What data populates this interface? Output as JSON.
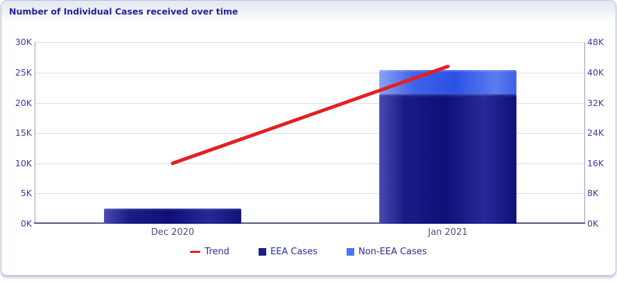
{
  "panel": {
    "title": "Number of Individual Cases received over time"
  },
  "axes": {
    "left": {
      "ticks": [
        "30K",
        "25K",
        "20K",
        "15K",
        "10K",
        "5K",
        "0K"
      ]
    },
    "right": {
      "ticks": [
        "48K",
        "40K",
        "32K",
        "24K",
        "16K",
        "8K",
        "0K"
      ]
    }
  },
  "legend": {
    "items": [
      {
        "label": "Trend",
        "color": "#E32020"
      },
      {
        "label": "EEA Cases",
        "color": "#1F1F8E"
      },
      {
        "label": "Non-EEA Cases",
        "color": "#4F74F0"
      }
    ]
  },
  "colors": {
    "title_text": "#24249B",
    "axis_text": "#3A3AA0",
    "x_label_text": "#4E4E86",
    "trend_line": "#E32020",
    "eea_bar": "#14147E",
    "non_eea_bar": "#3B5FE8",
    "gridline": "#D9DCE4",
    "panel_border": "#B9C3D7"
  },
  "chart_data": {
    "type": "bar",
    "subtype": "stacked-cylinder-bars-with-trend-line",
    "title": "Number of Individual Cases received over time",
    "categories": [
      "Dec 2020",
      "Jan 2021"
    ],
    "series": [
      {
        "name": "EEA Cases",
        "kind": "bar-stacked",
        "axis": "right",
        "values": [
          4000,
          34300
        ],
        "color": "#1F1F8E"
      },
      {
        "name": "Non-EEA Cases",
        "kind": "bar-stacked",
        "axis": "right",
        "values": [
          0,
          6400
        ],
        "color": "#4F74F0"
      },
      {
        "name": "Trend",
        "kind": "line",
        "axis": "left",
        "values": [
          10000,
          26000
        ],
        "color": "#E32020"
      }
    ],
    "axis_left": {
      "min": 0,
      "max": 30000,
      "tick_step": 5000,
      "tick_labels": [
        "0K",
        "5K",
        "10K",
        "15K",
        "20K",
        "25K",
        "30K"
      ]
    },
    "axis_right": {
      "min": 0,
      "max": 48000,
      "tick_step": 8000,
      "tick_labels": [
        "0K",
        "8K",
        "16K",
        "24K",
        "32K",
        "40K",
        "48K"
      ]
    },
    "grid": "horizontal",
    "legend_position": "bottom"
  }
}
